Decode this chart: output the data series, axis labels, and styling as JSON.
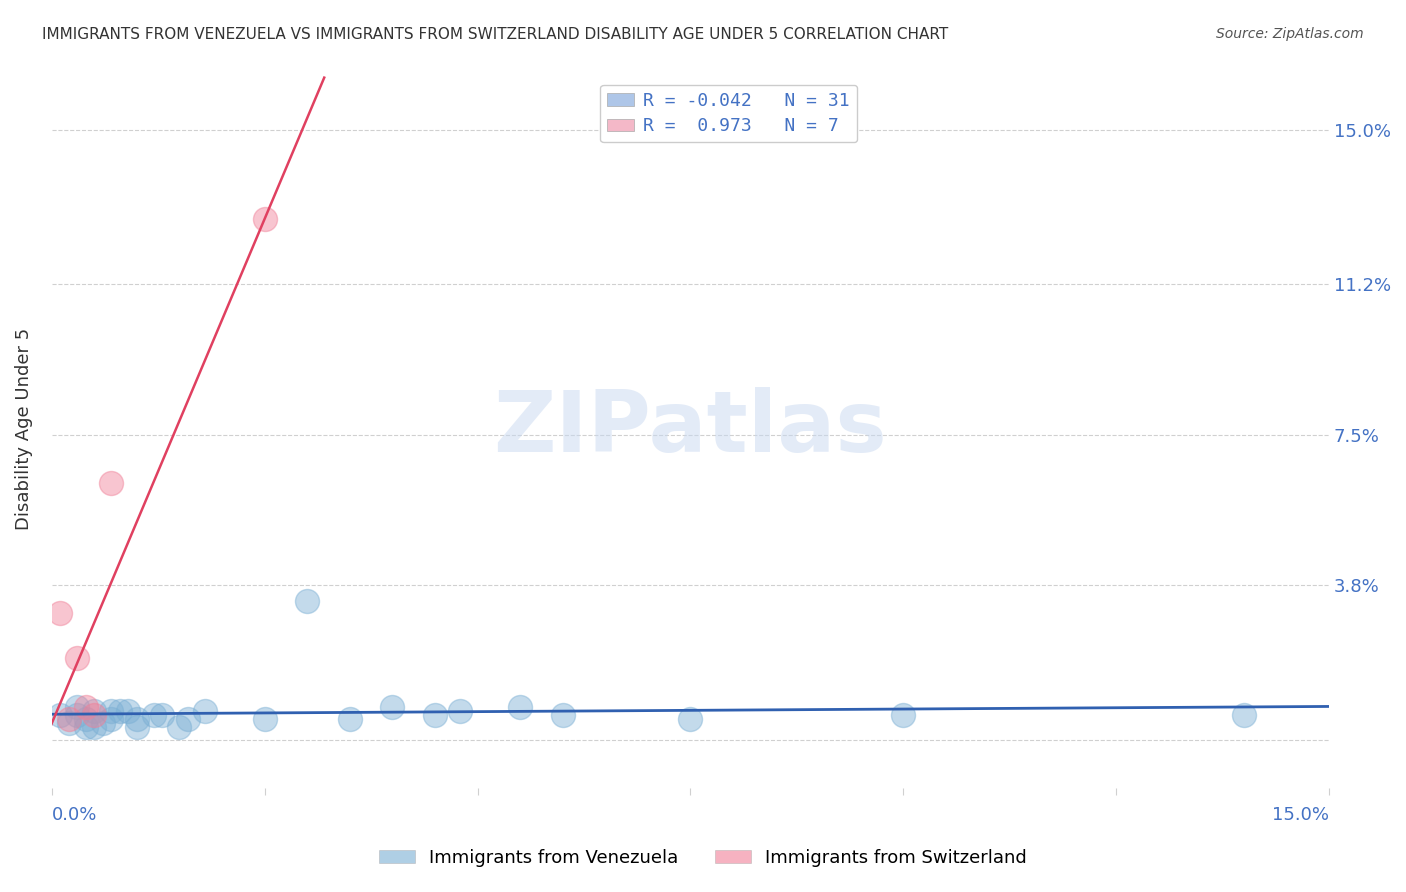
{
  "title": "IMMIGRANTS FROM VENEZUELA VS IMMIGRANTS FROM SWITZERLAND DISABILITY AGE UNDER 5 CORRELATION CHART",
  "source": "Source: ZipAtlas.com",
  "ylabel": "Disability Age Under 5",
  "watermark": "ZIPatlas",
  "xlim": [
    0.0,
    0.15
  ],
  "ylim": [
    -0.012,
    0.165
  ],
  "yticks": [
    0.0,
    0.038,
    0.075,
    0.112,
    0.15
  ],
  "ytick_labels": [
    "",
    "3.8%",
    "7.5%",
    "11.2%",
    "15.0%"
  ],
  "legend_entries": [
    {
      "label": "R = -0.042   N = 31",
      "color": "#aec6e8"
    },
    {
      "label": "R =  0.973   N = 7",
      "color": "#f4b8c8"
    }
  ],
  "legend_label1": "Immigrants from Venezuela",
  "legend_label2": "Immigrants from Switzerland",
  "venezuela_color": "#7bafd4",
  "switzerland_color": "#f08098",
  "trend_venezuela_color": "#3060b0",
  "trend_switzerland_color": "#e04060",
  "venezuela_points": [
    [
      0.001,
      0.006
    ],
    [
      0.002,
      0.004
    ],
    [
      0.003,
      0.008
    ],
    [
      0.003,
      0.006
    ],
    [
      0.004,
      0.005
    ],
    [
      0.004,
      0.003
    ],
    [
      0.005,
      0.007
    ],
    [
      0.005,
      0.003
    ],
    [
      0.006,
      0.004
    ],
    [
      0.007,
      0.007
    ],
    [
      0.007,
      0.005
    ],
    [
      0.008,
      0.007
    ],
    [
      0.009,
      0.007
    ],
    [
      0.01,
      0.003
    ],
    [
      0.01,
      0.005
    ],
    [
      0.012,
      0.006
    ],
    [
      0.013,
      0.006
    ],
    [
      0.015,
      0.003
    ],
    [
      0.016,
      0.005
    ],
    [
      0.018,
      0.007
    ],
    [
      0.025,
      0.005
    ],
    [
      0.03,
      0.034
    ],
    [
      0.035,
      0.005
    ],
    [
      0.04,
      0.008
    ],
    [
      0.045,
      0.006
    ],
    [
      0.048,
      0.007
    ],
    [
      0.055,
      0.008
    ],
    [
      0.06,
      0.006
    ],
    [
      0.075,
      0.005
    ],
    [
      0.1,
      0.006
    ],
    [
      0.14,
      0.006
    ]
  ],
  "switzerland_points": [
    [
      0.001,
      0.031
    ],
    [
      0.002,
      0.005
    ],
    [
      0.003,
      0.02
    ],
    [
      0.004,
      0.008
    ],
    [
      0.005,
      0.006
    ],
    [
      0.007,
      0.063
    ],
    [
      0.025,
      0.128
    ]
  ],
  "grid_color": "#d0d0d0",
  "bg_color": "#ffffff"
}
